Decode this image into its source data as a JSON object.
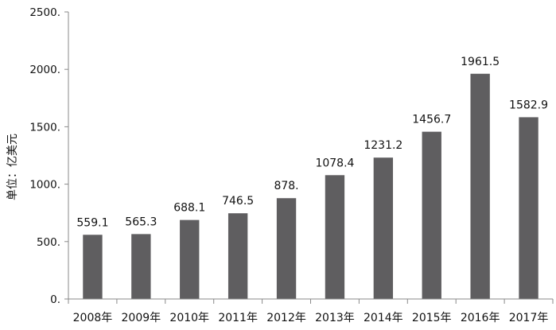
{
  "chart_data": {
    "type": "bar",
    "title": "",
    "xlabel": "",
    "ylabel": "单位：亿美元",
    "categories": [
      "2008年",
      "2009年",
      "2010年",
      "2011年",
      "2012年",
      "2013年",
      "2014年",
      "2015年",
      "2016年",
      "2017年"
    ],
    "values": [
      559.1,
      565.3,
      688.1,
      746.5,
      878.0,
      1078.4,
      1231.2,
      1456.7,
      1961.5,
      1582.9
    ],
    "data_labels": [
      "559.1",
      "565.3",
      "688.1",
      "746.5",
      "878.",
      "1078.4",
      "1231.2",
      "1456.7",
      "1961.5",
      "1582.9"
    ],
    "yticks": [
      0,
      500,
      1000,
      1500,
      2000,
      2500
    ],
    "ytick_labels": [
      "0.",
      "500.",
      "1000.",
      "1500.",
      "2000.",
      "2500."
    ],
    "ylim": [
      0,
      2500
    ],
    "grid": false,
    "legend": "none",
    "bar_color": "#5f5e60",
    "axis_color": "#8a8a8a"
  }
}
